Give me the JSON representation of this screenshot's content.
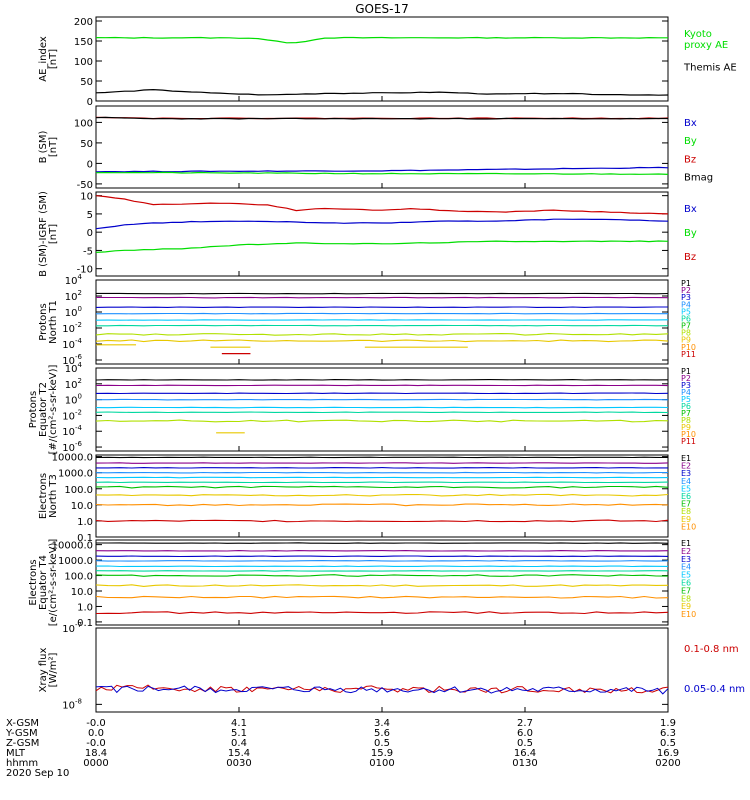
{
  "title": "GOES-17",
  "date": "2020 Sep 10",
  "colors": {
    "black": "#000000",
    "blue": "#0000cc",
    "green": "#00dd00",
    "red": "#cc0000",
    "ramp": [
      "#000000",
      "#8b008b",
      "#0000cc",
      "#1e90ff",
      "#00c8ff",
      "#00d8a0",
      "#00c000",
      "#b0e000",
      "#e8c800",
      "#ff9000",
      "#cc0000"
    ]
  },
  "chart_data": [
    {
      "type": "line",
      "id": "ae",
      "ylabel": "AE_index\n[nT]",
      "ylim": [
        0,
        210
      ],
      "yticks": [
        0,
        50,
        100,
        150,
        200
      ],
      "series": [
        {
          "name": "Kyoto\nproxy AE",
          "color": "#00dd00",
          "x": [
            0,
            0.1,
            0.2,
            0.28,
            0.31,
            0.34,
            0.37,
            0.4,
            0.5,
            0.7,
            0.9,
            1
          ],
          "y": [
            158,
            158,
            158,
            157,
            150,
            145,
            150,
            158,
            158,
            158,
            158,
            158
          ]
        },
        {
          "name": "Themis AE",
          "color": "#000000",
          "x": [
            0,
            0.1,
            0.2,
            0.3,
            0.4,
            0.5,
            0.6,
            0.7,
            0.8,
            0.9,
            1
          ],
          "y": [
            20,
            28,
            20,
            15,
            19,
            20,
            22,
            17,
            19,
            16,
            15
          ]
        }
      ]
    },
    {
      "type": "line",
      "id": "bsm",
      "ylabel": "B (SM)\n[nT]",
      "ylim": [
        -60,
        140
      ],
      "yticks": [
        -50,
        0,
        50,
        100
      ],
      "series": [
        {
          "name": "Bx",
          "color": "#0000cc",
          "x": [
            0,
            0.5,
            1
          ],
          "y": [
            -20,
            -18,
            -10
          ]
        },
        {
          "name": "By",
          "color": "#00dd00",
          "x": [
            0,
            0.5,
            1
          ],
          "y": [
            -22,
            -25,
            -26
          ]
        },
        {
          "name": "Bz",
          "color": "#cc0000",
          "x": [
            0,
            0.1,
            0.5,
            1
          ],
          "y": [
            113,
            110,
            110,
            110
          ]
        },
        {
          "name": "Bmag",
          "color": "#000000",
          "x": [
            0,
            0.1,
            0.5,
            1
          ],
          "y": [
            112,
            109,
            109,
            109
          ]
        }
      ]
    },
    {
      "type": "line",
      "id": "bigrf",
      "ylabel": "B (SM)-IGRF (SM)\n[nT]",
      "ylim": [
        -12,
        11
      ],
      "yticks": [
        -10,
        -5,
        0,
        5,
        10
      ],
      "series": [
        {
          "name": "Bx",
          "color": "#0000cc",
          "x": [
            0,
            0.05,
            0.1,
            0.2,
            0.3,
            0.4,
            0.5,
            0.6,
            0.7,
            0.8,
            0.9,
            1
          ],
          "y": [
            1,
            2,
            2.5,
            3,
            3,
            2.5,
            2.5,
            3,
            3,
            3.5,
            3.5,
            3
          ]
        },
        {
          "name": "By",
          "color": "#00dd00",
          "x": [
            0,
            0.05,
            0.15,
            0.25,
            0.35,
            0.5,
            0.7,
            0.85,
            1
          ],
          "y": [
            -5.5,
            -5,
            -4.5,
            -3.5,
            -3,
            -3.2,
            -2.5,
            -2.5,
            -2.5
          ]
        },
        {
          "name": "Bz",
          "color": "#cc0000",
          "x": [
            0,
            0.05,
            0.1,
            0.2,
            0.3,
            0.35,
            0.4,
            0.5,
            0.55,
            0.6,
            0.7,
            0.8,
            0.9,
            1
          ],
          "y": [
            10,
            9,
            7.5,
            8,
            7.5,
            6,
            6.5,
            6,
            6.5,
            6,
            5.5,
            6,
            5.5,
            5
          ]
        }
      ]
    },
    {
      "type": "line",
      "id": "prot1",
      "ylabel": "Protons\nNorth T1",
      "ylog": true,
      "ylim": [
        -6.5,
        4
      ],
      "ytick_exp": [
        4,
        2,
        0,
        -2,
        -4,
        -6
      ],
      "legend_labels": [
        "P1",
        "P2",
        "P3",
        "P4",
        "P5",
        "P6",
        "P7",
        "P8",
        "P9",
        "P10",
        "P11"
      ],
      "levels": [
        2.3,
        1.8,
        0.6,
        -0.2,
        -1,
        -1.7,
        -2.8,
        -3.6
      ],
      "level_colors": [
        "#000000",
        "#8b008b",
        "#0000cc",
        "#1e90ff",
        "#00c8ff",
        "#00d8a0",
        "#b0e000",
        "#e8c800"
      ],
      "segments": [
        {
          "color": "#e8c800",
          "x": [
            0.0,
            0.07
          ],
          "y": [
            -4.1,
            -4.1
          ]
        },
        {
          "color": "#e8c800",
          "x": [
            0.2,
            0.27
          ],
          "y": [
            -4.4,
            -4.4
          ]
        },
        {
          "color": "#e8c800",
          "x": [
            0.47,
            0.65
          ],
          "y": [
            -4.4,
            -4.4
          ]
        },
        {
          "color": "#cc0000",
          "x": [
            0.22,
            0.27
          ],
          "y": [
            -5.2,
            -5.2
          ]
        }
      ]
    },
    {
      "type": "line",
      "id": "prot2",
      "ylabel": "Protons\nEquator T2\n[#/(cm²-s-sr-keV)]",
      "ylog": true,
      "ylim": [
        -6.5,
        4
      ],
      "ytick_exp": [
        4,
        2,
        0,
        -2,
        -4,
        -6
      ],
      "legend_labels": [
        "P1",
        "P2",
        "P3",
        "P4",
        "P5",
        "P6",
        "P7",
        "P8",
        "P9",
        "P10",
        "P11"
      ],
      "levels": [
        2.5,
        1.8,
        0.8,
        0,
        -1,
        -1.6,
        -2.7
      ],
      "level_colors": [
        "#000000",
        "#8b008b",
        "#0000cc",
        "#1e90ff",
        "#00c8ff",
        "#00d8a0",
        "#b0e000"
      ],
      "segments": [
        {
          "color": "#e8c800",
          "x": [
            0.21,
            0.26
          ],
          "y": [
            -4.2,
            -4.2
          ]
        }
      ]
    },
    {
      "type": "line",
      "id": "elec3",
      "ylabel": "Electrons\nNorth T3",
      "ylog": true,
      "ylim": [
        -1,
        4.1
      ],
      "yticks_text": [
        "10000.0",
        "1000.0",
        "100.0",
        "10.0",
        "1.0",
        "0.1"
      ],
      "ytick_exp": [
        4,
        3,
        2,
        1,
        0,
        -1
      ],
      "legend_labels": [
        "E1",
        "E2",
        "E3",
        "E4",
        "E5",
        "E6",
        "E7",
        "E8",
        "E9",
        "E10"
      ],
      "levels": [
        3.95,
        3.6,
        3.3,
        3.0,
        2.7,
        2.4,
        2.1,
        1.6,
        1.0,
        0
      ],
      "level_colors": [
        "#000000",
        "#8b008b",
        "#0000cc",
        "#1e90ff",
        "#00c8ff",
        "#00d8a0",
        "#00c000",
        "#e8c800",
        "#ff9000",
        "#cc0000"
      ]
    },
    {
      "type": "line",
      "id": "elec4",
      "ylabel": "Electrons\nEquator T4\n[e/(cm²-s-sr-keV)]",
      "ylog": true,
      "ylim": [
        -1.2,
        4.3
      ],
      "yticks_text": [
        "10000.0",
        "1000.0",
        "100.0",
        "10.0",
        "1.0",
        "0.1"
      ],
      "ytick_exp": [
        4,
        3,
        2,
        1,
        0,
        -1
      ],
      "legend_labels": [
        "E1",
        "E2",
        "E3",
        "E4",
        "E5",
        "E6",
        "E7",
        "E8",
        "E9",
        "E10"
      ],
      "levels": [
        4.1,
        3.6,
        3.25,
        2.95,
        2.6,
        2.3,
        2.0,
        1.35,
        0.6,
        -0.4
      ],
      "level_colors": [
        "#000000",
        "#8b008b",
        "#0000cc",
        "#1e90ff",
        "#00c8ff",
        "#00d8a0",
        "#00c000",
        "#e8c800",
        "#ff9000",
        "#cc0000"
      ]
    },
    {
      "type": "line",
      "id": "xray",
      "ylabel": "Xray flux\n[W/m²]",
      "ylog": true,
      "ylim": [
        -8.1,
        -7
      ],
      "ytick_exp": [
        -7,
        -8
      ],
      "series": [
        {
          "name": "0.1-0.8 nm",
          "color": "#cc0000",
          "base": -7.79
        },
        {
          "name": "0.05-0.4 nm",
          "color": "#0000cc",
          "base": -7.8
        }
      ]
    }
  ],
  "x_axis": {
    "rows": [
      {
        "label": "X-GSM",
        "values": [
          "-0.0",
          "4.1",
          "3.4",
          "2.7",
          "1.9"
        ]
      },
      {
        "label": "Y-GSM",
        "values": [
          "0.0",
          "5.1",
          "5.6",
          "6.0",
          "6.3"
        ]
      },
      {
        "label": "Z-GSM",
        "values": [
          "-0.0",
          "0.4",
          "0.5",
          "0.5",
          "0.5"
        ]
      },
      {
        "label": "MLT",
        "values": [
          "18.4",
          "15.4",
          "15.9",
          "16.4",
          "16.9"
        ]
      },
      {
        "label": "hhmm",
        "values": [
          "0000",
          "0030",
          "0100",
          "0130",
          "0200"
        ]
      }
    ]
  }
}
